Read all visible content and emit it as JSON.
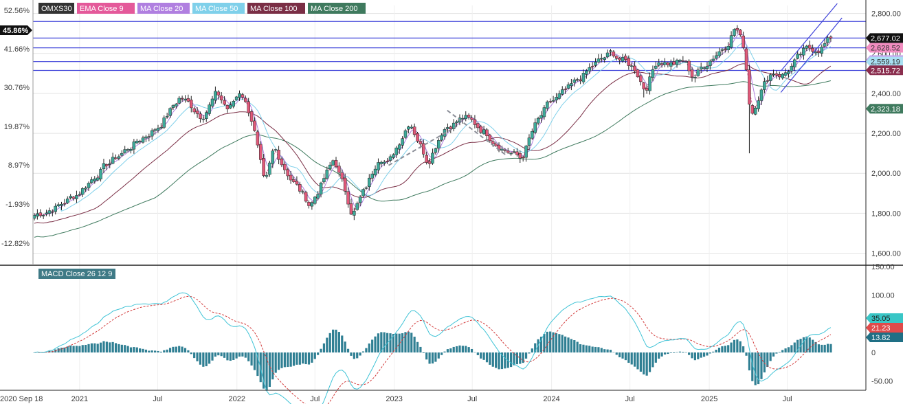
{
  "chart_data": [
    {
      "type": "candlestick",
      "symbol": "OMXS30",
      "legend": [
        {
          "label": "OMXS30",
          "color": "#333333"
        },
        {
          "label": "EMA Close 9",
          "color": "#e4599a"
        },
        {
          "label": "MA Close 20",
          "color": "#b07fe0"
        },
        {
          "label": "MA Close 50",
          "color": "#7fd0ea"
        },
        {
          "label": "MA Close 100",
          "color": "#7a2e45"
        },
        {
          "label": "MA Close 200",
          "color": "#3f7a5e"
        }
      ],
      "x_labels": [
        "2020 Sep 18",
        "2021",
        "Jul",
        "2022",
        "Jul",
        "2023",
        "Jul",
        "2024",
        "Jul",
        "2025",
        "Jul"
      ],
      "x_range": [
        "2020-09-18",
        "2025-12-31"
      ],
      "y_right": {
        "ticks": [
          1600,
          1800,
          2000,
          2200,
          2400,
          2600,
          2800
        ],
        "tick_labels": [
          "1,600.00",
          "1,800.00",
          "2,000.00",
          "2,200.00",
          "2,400.00",
          "2,600.00",
          "2,800.00"
        ],
        "range": [
          1540,
          2840
        ]
      },
      "y_left_pct": {
        "ticks": [
          "-12.82%",
          "-1.93%",
          "8.97%",
          "19.87%",
          "30.76%",
          "41.66%",
          "52.56%"
        ],
        "current": "45.86%"
      },
      "horizontal_levels": [
        2760,
        2677,
        2628,
        2559,
        2515
      ],
      "channel": [
        {
          "from": [
            "2025-06-16",
            2405
          ],
          "to": [
            "2025-11-05",
            2778
          ]
        },
        {
          "from": [
            "2025-06-16",
            2512
          ],
          "to": [
            "2025-10-25",
            2850
          ]
        }
      ],
      "pattern_lines": [
        {
          "from": [
            "2022-12-19",
            2040
          ],
          "to": [
            "2023-05-26",
            2235
          ]
        },
        {
          "from": [
            "2023-05-04",
            2315
          ],
          "to": [
            "2023-09-18",
            2090
          ]
        }
      ],
      "price_tags": [
        {
          "label": "2,677.02",
          "value": 2677.02,
          "bg": "#111111",
          "fg": "#ffffff"
        },
        {
          "label": "2,628.52",
          "value": 2628.52,
          "bg": "#f28cc0",
          "fg": "#333333"
        },
        {
          "label": "2,567.12",
          "value": 2567.12,
          "bg": "#c7a6ee",
          "fg": "#333333"
        },
        {
          "label": "2,559.19",
          "value": 2559.19,
          "bg": "#a9e0f2",
          "fg": "#333333"
        },
        {
          "label": "2,515.72",
          "value": 2515.72,
          "bg": "#8a2e4e",
          "fg": "#ffffff"
        },
        {
          "label": "2,323.18",
          "value": 2323.18,
          "bg": "#3f7a5e",
          "fg": "#ffffff"
        }
      ],
      "colors": {
        "up": "#3daa9a",
        "down": "#e2597a",
        "level": "#3f43d9",
        "grid": "#e3e3e3"
      },
      "anchors": [
        [
          "2020-09-18",
          1790
        ],
        [
          "2020-11-16",
          1840
        ],
        [
          "2020-12-28",
          1900
        ],
        [
          "2021-02-15",
          2010
        ],
        [
          "2021-04-26",
          2130
        ],
        [
          "2021-07-05",
          2240
        ],
        [
          "2021-08-23",
          2385
        ],
        [
          "2021-10-11",
          2290
        ],
        [
          "2021-11-15",
          2400
        ],
        [
          "2021-12-13",
          2315
        ],
        [
          "2022-01-10",
          2420
        ],
        [
          "2022-02-07",
          2260
        ],
        [
          "2022-03-07",
          1920
        ],
        [
          "2022-03-28",
          2120
        ],
        [
          "2022-05-09",
          1970
        ],
        [
          "2022-06-20",
          1840
        ],
        [
          "2022-08-15",
          2070
        ],
        [
          "2022-09-26",
          1800
        ],
        [
          "2022-10-31",
          1940
        ],
        [
          "2022-11-28",
          2100
        ],
        [
          "2022-12-19",
          2050
        ],
        [
          "2023-02-06",
          2270
        ],
        [
          "2023-03-20",
          2060
        ],
        [
          "2023-04-24",
          2230
        ],
        [
          "2023-06-12",
          2280
        ],
        [
          "2023-07-31",
          2210
        ],
        [
          "2023-09-04",
          2140
        ],
        [
          "2023-10-23",
          2070
        ],
        [
          "2023-11-20",
          2220
        ],
        [
          "2023-12-25",
          2340
        ],
        [
          "2024-02-12",
          2420
        ],
        [
          "2024-04-08",
          2540
        ],
        [
          "2024-05-20",
          2600
        ],
        [
          "2024-07-15",
          2520
        ],
        [
          "2024-08-05",
          2420
        ],
        [
          "2024-09-02",
          2570
        ],
        [
          "2024-10-07",
          2550
        ],
        [
          "2024-11-04",
          2560
        ],
        [
          "2024-11-25",
          2480
        ],
        [
          "2025-01-06",
          2580
        ],
        [
          "2025-02-10",
          2650
        ],
        [
          "2025-03-03",
          2740
        ],
        [
          "2025-03-24",
          2620
        ],
        [
          "2025-04-07",
          2290
        ],
        [
          "2025-04-28",
          2410
        ],
        [
          "2025-05-26",
          2510
        ],
        [
          "2025-06-23",
          2495
        ],
        [
          "2025-08-11",
          2610
        ],
        [
          "2025-09-15",
          2630
        ],
        [
          "2025-10-13",
          2677
        ]
      ]
    },
    {
      "type": "macd",
      "label": "MACD Close 26 12 9",
      "y_ticks": [
        -50,
        0,
        50,
        100,
        150
      ],
      "tick_labels": [
        "-50.00",
        "0",
        "50.00",
        "100.00",
        "150.00"
      ],
      "range": [
        -66,
        150
      ],
      "tags": [
        {
          "label": "35.05",
          "value": 35.05,
          "bg": "#39c6c6",
          "fg": "#222222"
        },
        {
          "label": "21.23",
          "value": 21.23,
          "bg": "#e04a4a",
          "fg": "#ffffff"
        },
        {
          "label": "13.82",
          "value": 13.82,
          "bg": "#1f6f85",
          "fg": "#ffffff"
        }
      ],
      "colors": {
        "macd": "#3fc3d6",
        "signal": "#d23a3a",
        "histogram": "#2f7f93"
      }
    }
  ]
}
